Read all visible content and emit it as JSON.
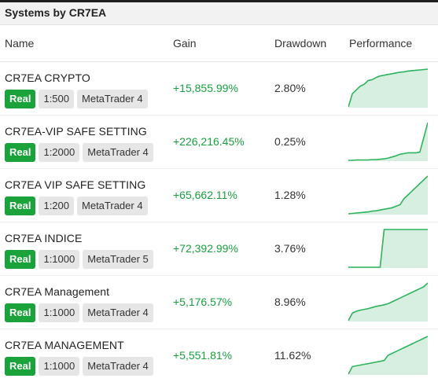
{
  "window": {
    "title": "Systems by CR7EA"
  },
  "columns": {
    "name": "Name",
    "gain": "Gain",
    "drawdown": "Drawdown",
    "performance": "Performance"
  },
  "colors": {
    "gain": "#1a9e3f",
    "real_badge": "#1aa33a",
    "sparkline_line": "#2db35c",
    "sparkline_fill": "#d7efe0"
  },
  "systems": [
    {
      "name": "CR7EA CRYPTO",
      "account_type": "Real",
      "leverage": "1:500",
      "platform": "MetaTrader 4",
      "gain": "+15,855.99%",
      "drawdown": "2.80%",
      "performance": [
        0.0,
        0.35,
        0.45,
        0.55,
        0.6,
        0.7,
        0.72,
        0.78,
        0.82,
        0.84,
        0.86,
        0.88,
        0.9,
        0.92,
        0.93,
        0.95,
        0.96,
        0.97,
        0.98,
        0.99,
        1.0
      ]
    },
    {
      "name": "CR7EA-VIP SAFE SETTING",
      "account_type": "Real",
      "leverage": "1:2000",
      "platform": "MetaTrader 4",
      "gain": "+226,216.45%",
      "drawdown": "0.25%",
      "performance": [
        0.0,
        0.0,
        0.01,
        0.01,
        0.01,
        0.01,
        0.02,
        0.02,
        0.03,
        0.04,
        0.06,
        0.09,
        0.12,
        0.16,
        0.18,
        0.2,
        0.2,
        0.2,
        0.22,
        0.6,
        1.0
      ]
    },
    {
      "name": "CR7EA VIP SAFE SETTING",
      "account_type": "Real",
      "leverage": "1:200",
      "platform": "MetaTrader 4",
      "gain": "+65,662.11%",
      "drawdown": "1.28%",
      "performance": [
        0.0,
        0.01,
        0.02,
        0.03,
        0.04,
        0.05,
        0.07,
        0.08,
        0.1,
        0.12,
        0.14,
        0.16,
        0.2,
        0.24,
        0.4,
        0.5,
        0.6,
        0.7,
        0.8,
        0.9,
        1.0
      ]
    },
    {
      "name": "CR7EA INDICE",
      "account_type": "Real",
      "leverage": "1:1000",
      "platform": "MetaTrader 5",
      "gain": "+72,392.99%",
      "drawdown": "3.76%",
      "performance": [
        0.0,
        0.0,
        0.0,
        0.0,
        0.0,
        0.0,
        0.0,
        0.0,
        0.0,
        1.0,
        1.0,
        1.0,
        1.0,
        1.0,
        1.0,
        1.0,
        1.0,
        1.0,
        1.0,
        1.0,
        1.0
      ]
    },
    {
      "name": "CR7EA Management",
      "account_type": "Real",
      "leverage": "1:1000",
      "platform": "MetaTrader 4",
      "gain": "+5,176.57%",
      "drawdown": "8.96%",
      "performance": [
        0.0,
        0.2,
        0.25,
        0.28,
        0.3,
        0.32,
        0.35,
        0.38,
        0.4,
        0.42,
        0.45,
        0.5,
        0.55,
        0.6,
        0.65,
        0.7,
        0.75,
        0.8,
        0.85,
        0.9,
        1.0
      ]
    },
    {
      "name": "CR7EA MANAGEMENT",
      "account_type": "Real",
      "leverage": "1:1000",
      "platform": "MetaTrader 4",
      "gain": "+5,551.81%",
      "drawdown": "11.62%",
      "performance": [
        0.0,
        0.2,
        0.22,
        0.24,
        0.26,
        0.28,
        0.3,
        0.32,
        0.34,
        0.36,
        0.5,
        0.55,
        0.6,
        0.65,
        0.7,
        0.75,
        0.8,
        0.85,
        0.9,
        0.95,
        1.0
      ]
    }
  ]
}
